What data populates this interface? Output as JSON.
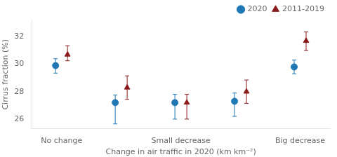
{
  "chart_data": {
    "type": "scatter",
    "categories": [
      "No change",
      null,
      "Small decrease",
      null,
      "Big decrease"
    ],
    "xlabel": "Change in air traffic in 2020 (km km⁻²)",
    "ylabel": "Cirrus fraction (%)",
    "ylim": [
      25.3,
      33.2
    ],
    "yticks": [
      26,
      28,
      30,
      32
    ],
    "grid": false,
    "legend": "upper right",
    "series": [
      {
        "name": "2020",
        "color": "#1f77b4",
        "marker": "circle",
        "values": [
          29.9,
          27.2,
          27.2,
          27.3,
          29.8
        ],
        "yerr_lo": [
          0.55,
          1.55,
          1.2,
          1.1,
          0.5
        ],
        "yerr_hi": [
          0.5,
          0.55,
          0.6,
          0.6,
          0.5
        ]
      },
      {
        "name": "2011-2019",
        "color": "#8b1a1a",
        "marker": "triangle",
        "values": [
          30.7,
          28.3,
          27.2,
          28.0,
          31.7
        ],
        "yerr_lo": [
          0.45,
          0.85,
          1.2,
          0.85,
          0.7
        ],
        "yerr_hi": [
          0.65,
          0.85,
          0.6,
          0.85,
          0.65
        ]
      }
    ]
  }
}
